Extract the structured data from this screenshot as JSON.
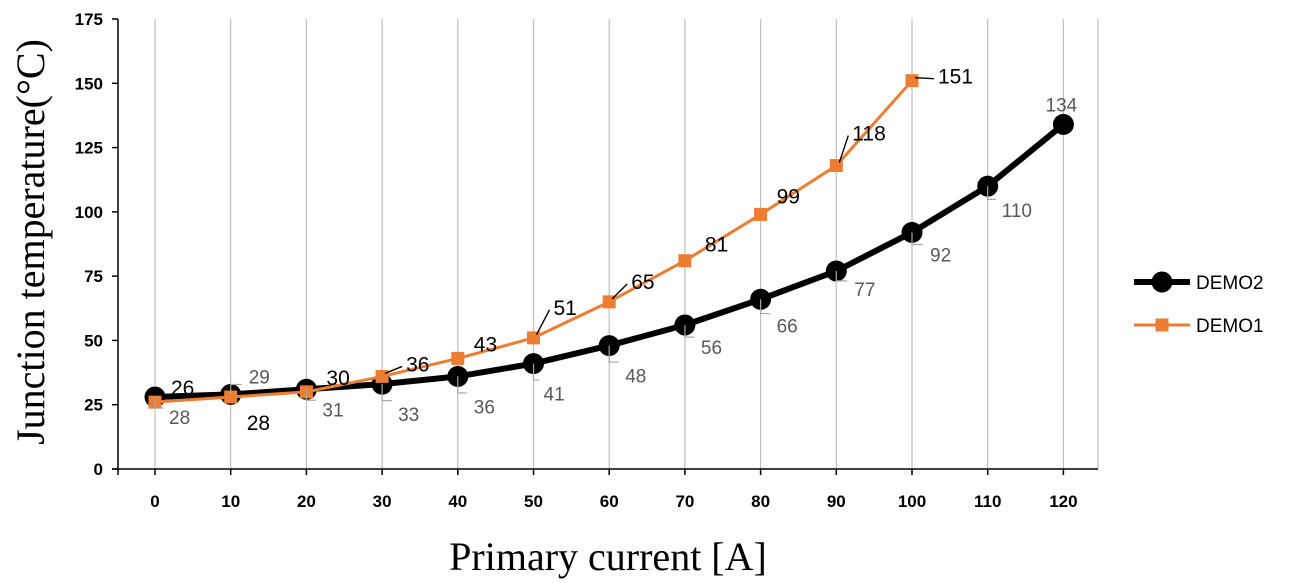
{
  "chart_data": {
    "type": "line",
    "xlabel": "Primary current  [A]",
    "ylabel": "Junction temperature(°C)",
    "xlim": [
      0,
      120
    ],
    "ylim": [
      0,
      175
    ],
    "x_ticks": [
      "0",
      "10",
      "20",
      "30",
      "40",
      "50",
      "60",
      "70",
      "80",
      "90",
      "100",
      "110",
      "120"
    ],
    "y_ticks": [
      "0",
      "25",
      "50",
      "75",
      "100",
      "125",
      "150",
      "175"
    ],
    "grid": "vertical",
    "legend_position": "right",
    "series": [
      {
        "name": "DEMO2",
        "color": "#000000",
        "marker": "circle",
        "x": [
          0,
          10,
          20,
          30,
          40,
          50,
          60,
          70,
          80,
          90,
          100,
          110,
          120
        ],
        "values": [
          28,
          29,
          31,
          33,
          36,
          41,
          48,
          56,
          66,
          77,
          92,
          110,
          134
        ],
        "labels": [
          "28",
          "29",
          "31",
          "33",
          "36",
          "41",
          "48",
          "56",
          "66",
          "77",
          "92",
          "110",
          "134"
        ]
      },
      {
        "name": "DEMO1",
        "color": "#ED7D31",
        "marker": "square",
        "x": [
          0,
          10,
          20,
          30,
          40,
          50,
          60,
          70,
          80,
          90,
          100
        ],
        "values": [
          26,
          28,
          30,
          36,
          43,
          51,
          65,
          81,
          99,
          118,
          151
        ],
        "labels": [
          "26",
          "28",
          "30",
          "36",
          "43",
          "51",
          "65",
          "81",
          "99",
          "118",
          "151"
        ]
      }
    ]
  }
}
